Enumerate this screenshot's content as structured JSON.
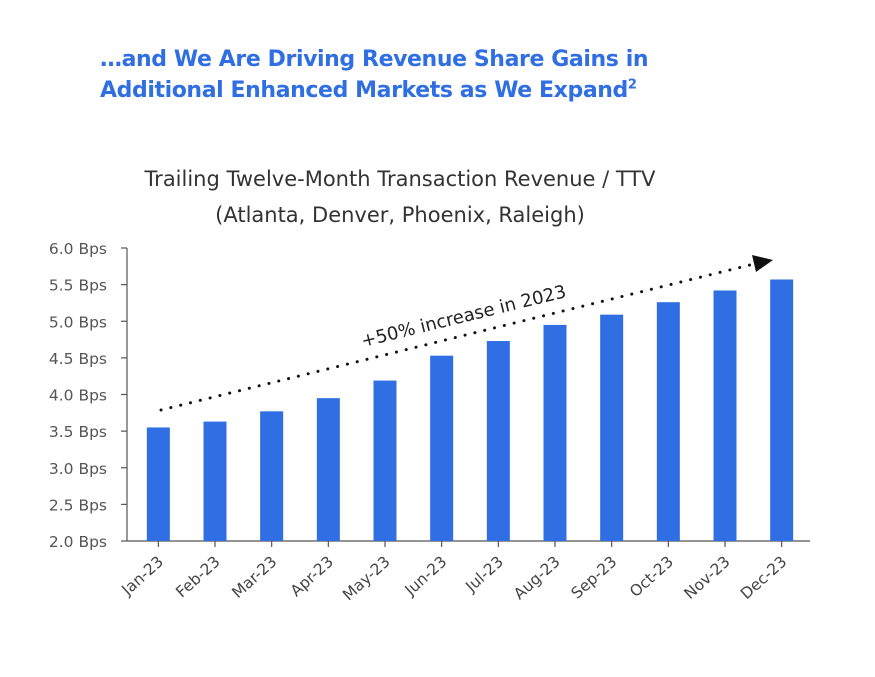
{
  "headline": {
    "line1": "…and We Are Driving Revenue Share Gains in",
    "line2": "Additional Enhanced Markets as We Expand",
    "footnote_mark": "2"
  },
  "chart_data": {
    "type": "bar",
    "title": "Trailing Twelve-Month Transaction Revenue / TTV",
    "subtitle": "(Atlanta, Denver, Phoenix, Raleigh)",
    "xlabel": "",
    "ylabel": "",
    "categories": [
      "Jan-23",
      "Feb-23",
      "Mar-23",
      "Apr-23",
      "May-23",
      "Jun-23",
      "Jul-23",
      "Aug-23",
      "Sep-23",
      "Oct-23",
      "Nov-23",
      "Dec-23"
    ],
    "values": [
      3.55,
      3.63,
      3.77,
      3.95,
      4.19,
      4.53,
      4.73,
      4.95,
      5.09,
      5.26,
      5.42,
      5.57
    ],
    "ylim": [
      2.0,
      6.0
    ],
    "yticks": [
      2.0,
      2.5,
      3.0,
      3.5,
      4.0,
      4.5,
      5.0,
      5.5,
      6.0
    ],
    "ytick_labels": [
      "2.0 Bps",
      "2.5 Bps",
      "3.0 Bps",
      "3.5 Bps",
      "4.0 Bps",
      "4.5 Bps",
      "5.0 Bps",
      "5.5 Bps",
      "6.0 Bps"
    ],
    "grid": false,
    "bar_color": "#2f6ee3",
    "annotation": "+50% increase in 2023"
  }
}
